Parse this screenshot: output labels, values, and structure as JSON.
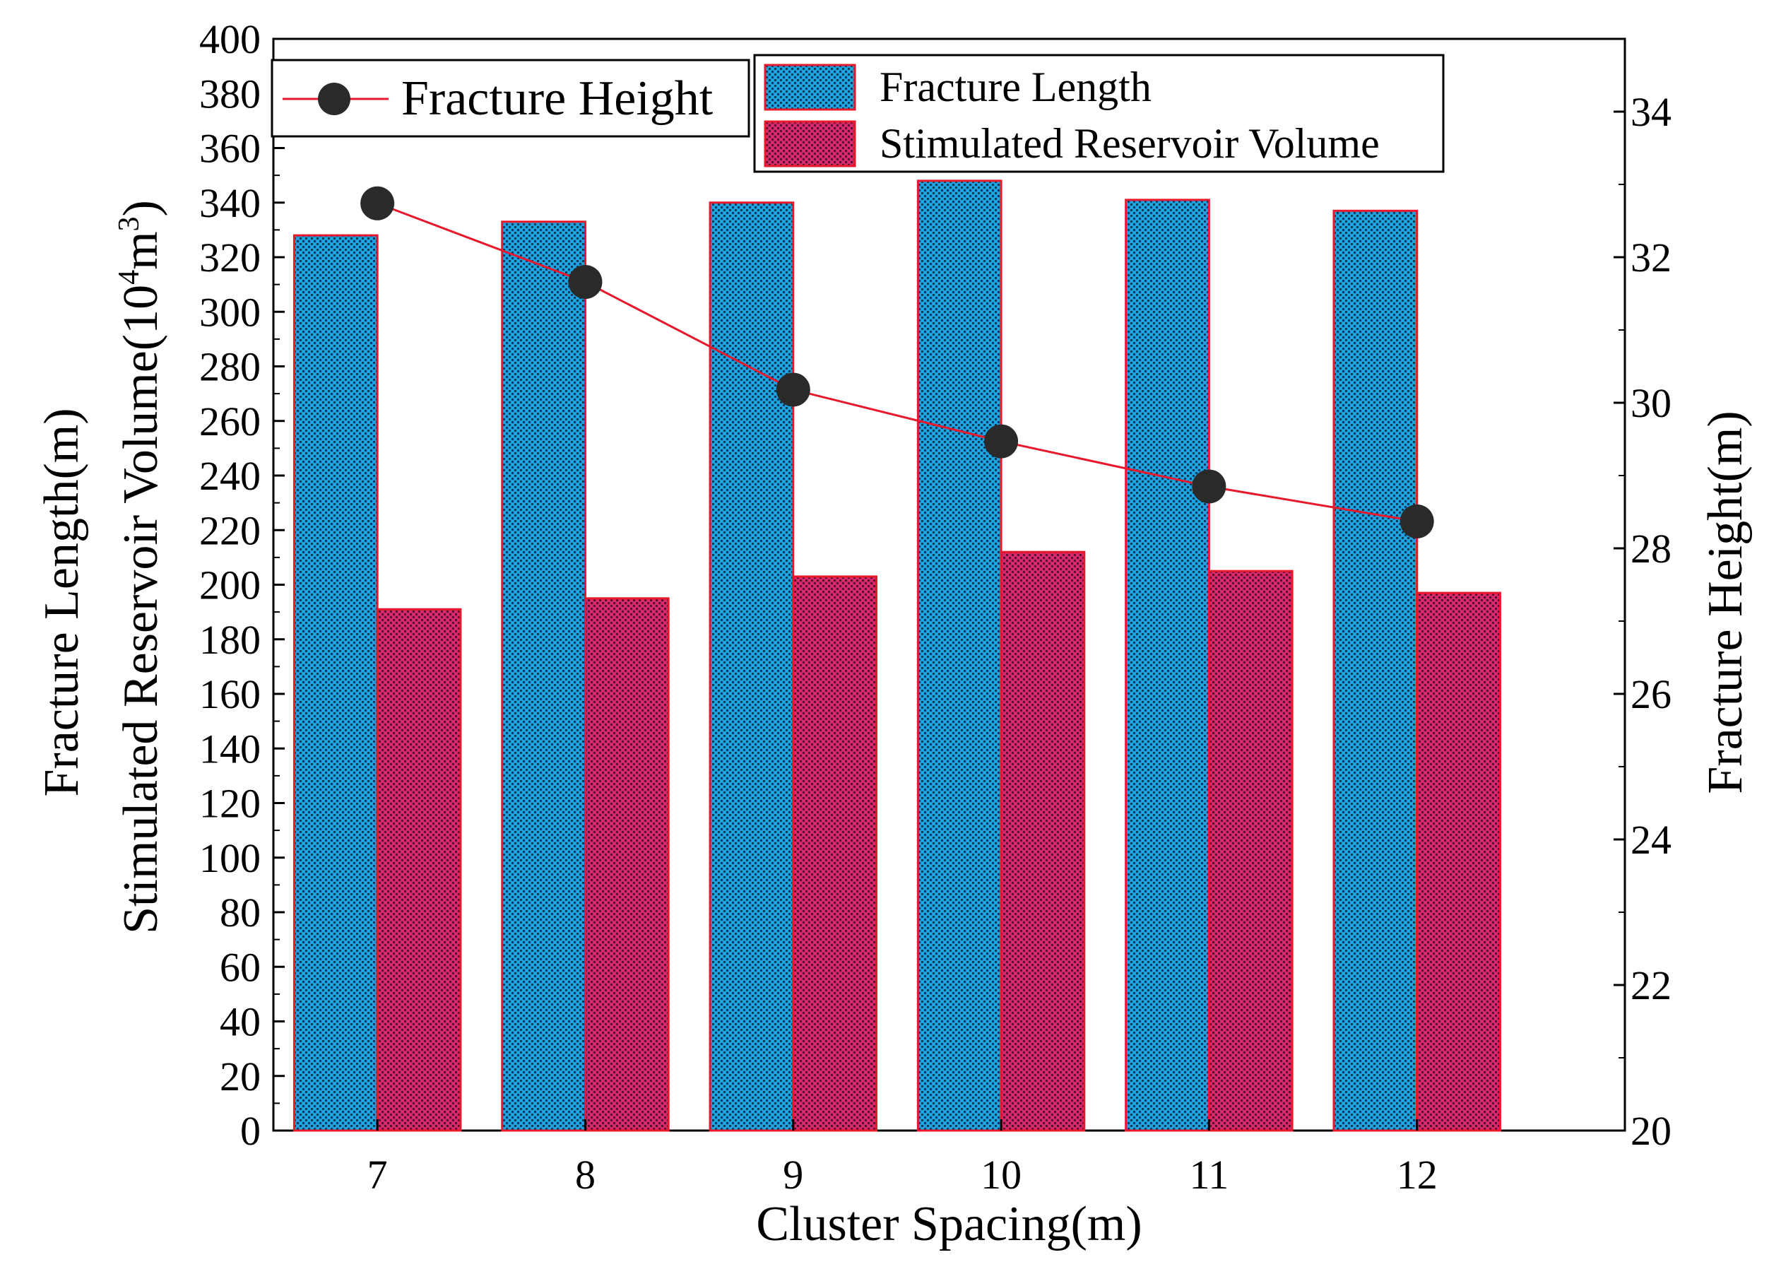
{
  "chart_data": {
    "type": "bar",
    "x": [
      7,
      8,
      9,
      10,
      11,
      12
    ],
    "categories": [
      "7",
      "8",
      "9",
      "10",
      "11",
      "12"
    ],
    "xlabel": "Cluster Spacing(m)",
    "ylabel_left": {
      "line1": "Stimulated Reservoir Volume(10",
      "sup": "4",
      "mid": "m",
      "sup2": "3",
      "end": ")",
      "line2": "Fracture Length(m)"
    },
    "ylabel_right": "Fracture Height(m)",
    "ylim_left": [
      0,
      400
    ],
    "yticks_left": [
      0,
      20,
      40,
      60,
      80,
      100,
      120,
      140,
      160,
      180,
      200,
      220,
      240,
      260,
      280,
      300,
      320,
      340,
      360,
      380,
      400
    ],
    "ylim_right": [
      20,
      35
    ],
    "yticks_right": [
      20,
      22,
      24,
      26,
      28,
      30,
      32,
      34
    ],
    "series": [
      {
        "name": "Fracture Length",
        "kind": "bar",
        "axis": "left",
        "values": [
          328,
          333,
          340,
          348,
          341,
          337
        ],
        "fill": "#1aa3e0",
        "stroke": "#e8192c"
      },
      {
        "name": "Stimulated Reservoir Volume",
        "kind": "bar",
        "axis": "left",
        "values": [
          191,
          195,
          203,
          212,
          205,
          197
        ],
        "fill": "#d6286a",
        "stroke": "#e8192c"
      },
      {
        "name": "Fracture Height",
        "kind": "line",
        "axis": "right",
        "values": [
          32.74,
          31.66,
          30.18,
          29.47,
          28.85,
          28.37
        ],
        "marker_color": "#2a2a2a",
        "line_color": "#e8192c"
      }
    ],
    "legend_placement": "top"
  }
}
